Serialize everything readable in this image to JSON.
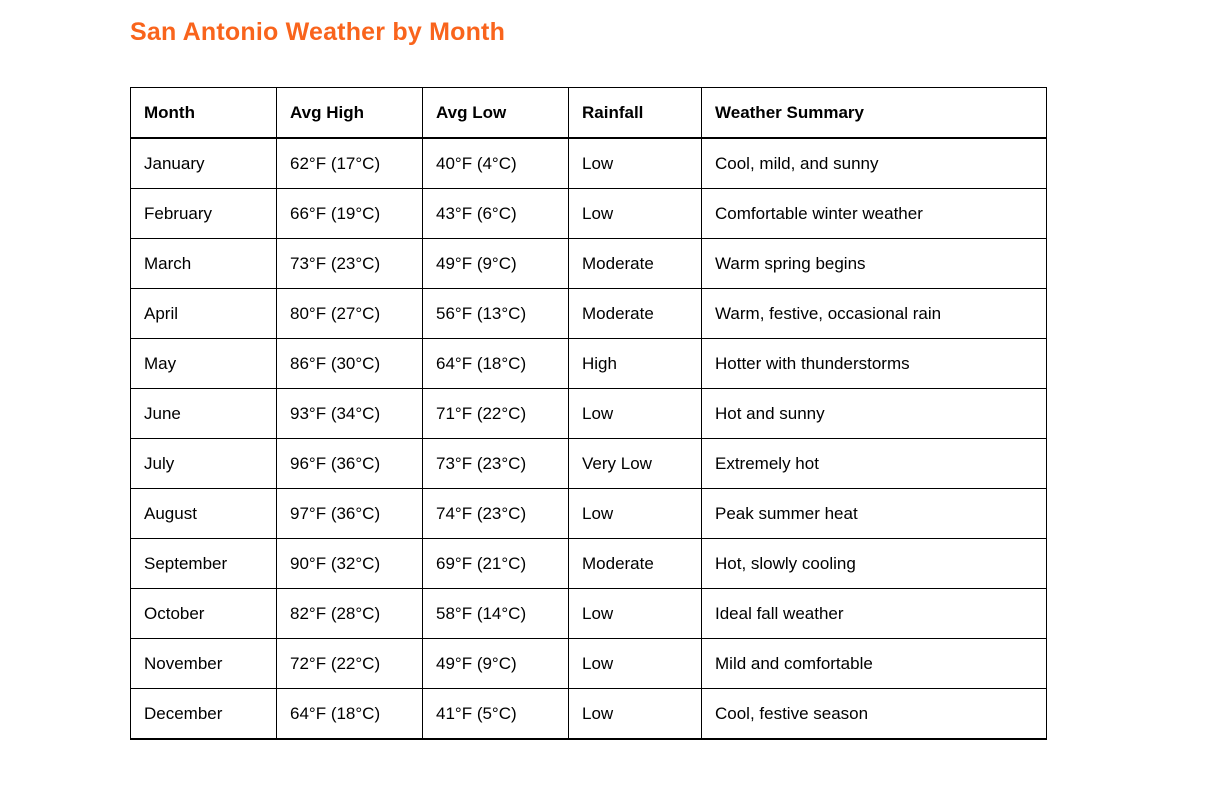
{
  "page": {
    "title": "San Antonio Weather by Month"
  },
  "colors": {
    "title_orange": "#F9641C",
    "table_border": "#000000",
    "text": "#000000",
    "background": "#FFFFFF"
  },
  "table": {
    "columns": [
      "Month",
      "Avg High",
      "Avg Low",
      "Rainfall",
      "Weather Summary"
    ],
    "column_keys": [
      "month",
      "avg_high",
      "avg_low",
      "rainfall",
      "summary"
    ],
    "rows": [
      {
        "month": "January",
        "avg_high": "62°F (17°C)",
        "avg_low": "40°F (4°C)",
        "rainfall": "Low",
        "summary": "Cool, mild, and sunny"
      },
      {
        "month": "February",
        "avg_high": "66°F (19°C)",
        "avg_low": "43°F (6°C)",
        "rainfall": "Low",
        "summary": "Comfortable winter weather"
      },
      {
        "month": "March",
        "avg_high": "73°F (23°C)",
        "avg_low": "49°F (9°C)",
        "rainfall": "Moderate",
        "summary": "Warm spring begins"
      },
      {
        "month": "April",
        "avg_high": "80°F (27°C)",
        "avg_low": "56°F (13°C)",
        "rainfall": "Moderate",
        "summary": "Warm, festive, occasional rain"
      },
      {
        "month": "May",
        "avg_high": "86°F (30°C)",
        "avg_low": "64°F (18°C)",
        "rainfall": "High",
        "summary": "Hotter with thunderstorms"
      },
      {
        "month": "June",
        "avg_high": "93°F (34°C)",
        "avg_low": "71°F (22°C)",
        "rainfall": "Low",
        "summary": "Hot and sunny"
      },
      {
        "month": "July",
        "avg_high": "96°F (36°C)",
        "avg_low": "73°F (23°C)",
        "rainfall": "Very Low",
        "summary": "Extremely hot"
      },
      {
        "month": "August",
        "avg_high": "97°F (36°C)",
        "avg_low": "74°F (23°C)",
        "rainfall": "Low",
        "summary": "Peak summer heat"
      },
      {
        "month": "September",
        "avg_high": "90°F (32°C)",
        "avg_low": "69°F (21°C)",
        "rainfall": "Moderate",
        "summary": "Hot, slowly cooling"
      },
      {
        "month": "October",
        "avg_high": "82°F (28°C)",
        "avg_low": "58°F (14°C)",
        "rainfall": "Low",
        "summary": "Ideal fall weather"
      },
      {
        "month": "November",
        "avg_high": "72°F (22°C)",
        "avg_low": "49°F (9°C)",
        "rainfall": "Low",
        "summary": "Mild and comfortable"
      },
      {
        "month": "December",
        "avg_high": "64°F (18°C)",
        "avg_low": "41°F (5°C)",
        "rainfall": "Low",
        "summary": "Cool, festive season"
      }
    ]
  }
}
